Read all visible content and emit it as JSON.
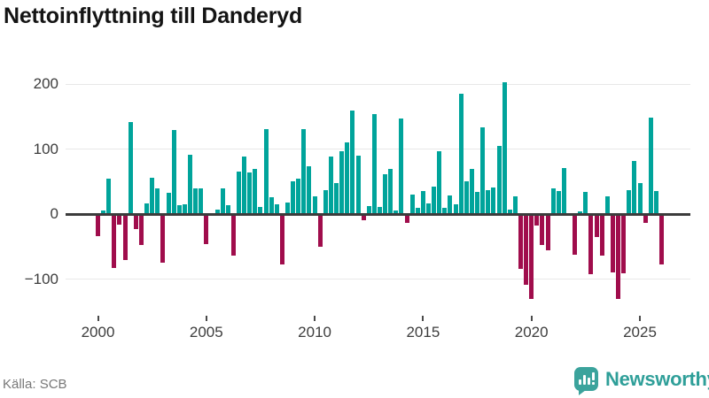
{
  "footer": {
    "source_label": "Källa: SCB",
    "brand_name": "Newsworthy"
  },
  "colors": {
    "positive_bar": "#00a49b",
    "negative_bar": "#a00d4c",
    "zero_line": "#3c3c3c",
    "gridline": "#e8e8e8",
    "axis_text": "#3d3d3d",
    "source_text": "#787878",
    "brand_teal": "#2f9f99",
    "badge_teal": "#3ba39c",
    "title_text": "#141414"
  },
  "chart_data": {
    "type": "bar",
    "title": "Nettoinflyttning till Danderyd",
    "xlabel": "",
    "ylabel": "",
    "x_start": {
      "year": 2000,
      "quarter": 1
    },
    "x_end": {
      "year": 2026,
      "quarter": 1
    },
    "frequency": "quarterly",
    "values": [
      -34,
      6,
      55,
      -83,
      -16,
      -71,
      142,
      -23,
      -48,
      17,
      56,
      40,
      -75,
      33,
      129,
      13,
      15,
      91,
      40,
      40,
      -46,
      0,
      7,
      40,
      13,
      -64,
      65,
      88,
      64,
      70,
      11,
      130,
      26,
      15,
      -77,
      18,
      50,
      54,
      131,
      73,
      27,
      -50,
      37,
      88,
      48,
      97,
      110,
      159,
      90,
      -10,
      12,
      154,
      11,
      61,
      69,
      5,
      147,
      -14,
      30,
      9,
      36,
      17,
      42,
      96,
      10,
      28,
      15,
      185,
      50,
      69,
      34,
      133,
      37,
      41,
      105,
      203,
      7,
      27,
      -84,
      -109,
      -131,
      -18,
      -48,
      -56,
      40,
      36,
      71,
      0,
      -62,
      4,
      34,
      -92,
      -35,
      -64,
      27,
      -90,
      -130,
      -91,
      37,
      82,
      48,
      -14,
      148,
      36,
      -77
    ],
    "x_ticks": [
      2000,
      2005,
      2010,
      2015,
      2020,
      2025
    ],
    "x_tick_labels": [
      "2000",
      "2005",
      "2010",
      "2015",
      "2020",
      "2025"
    ],
    "y_ticks": [
      200,
      100,
      0,
      -100
    ],
    "y_tick_labels": [
      "200",
      "100",
      "0",
      "−100"
    ],
    "ylim": [
      -140,
      215
    ],
    "grid": true,
    "legend": false
  }
}
